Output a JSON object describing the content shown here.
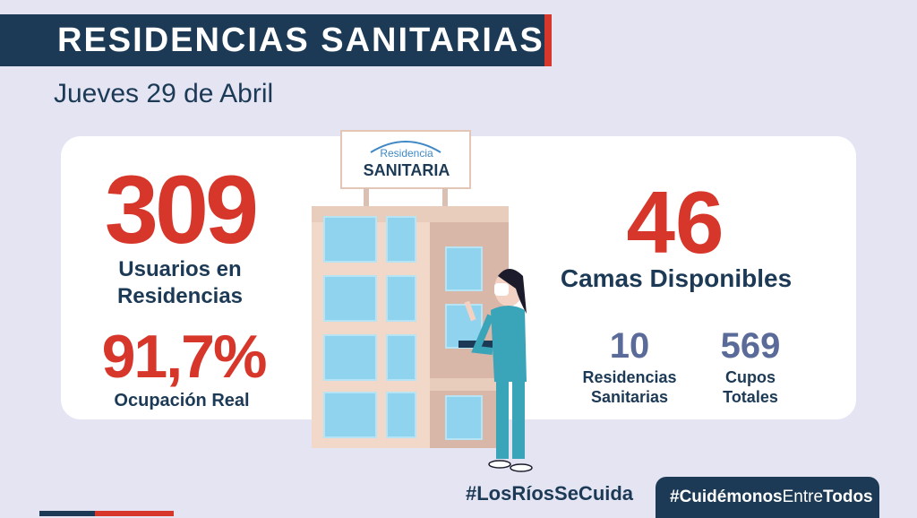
{
  "header": {
    "title": "RESIDENCIAS SANITARIAS",
    "date": "Jueves 29 de Abril"
  },
  "sign": {
    "line1": "Residencia",
    "line2": "SANITARIA"
  },
  "left_stats": {
    "usuarios_value": "309",
    "usuarios_label": "Usuarios en Residencias",
    "ocupacion_value": "91,7%",
    "ocupacion_label": "Ocupación Real"
  },
  "right_stats": {
    "camas_value": "46",
    "camas_label": "Camas Disponibles",
    "residencias_value": "10",
    "residencias_label": "Residencias Sanitarias",
    "cupos_value": "569",
    "cupos_label": "Cupos Totales"
  },
  "footer": {
    "hashtag1": "#LosRíosSeCuida",
    "hashtag2_part1": "#Cuidémonos",
    "hashtag2_part2": "Entre",
    "hashtag2_part3": "Todos"
  },
  "colors": {
    "navy": "#1c3a55",
    "red": "#d7372b",
    "slate": "#5b6b99",
    "background": "#e4e4f2"
  }
}
